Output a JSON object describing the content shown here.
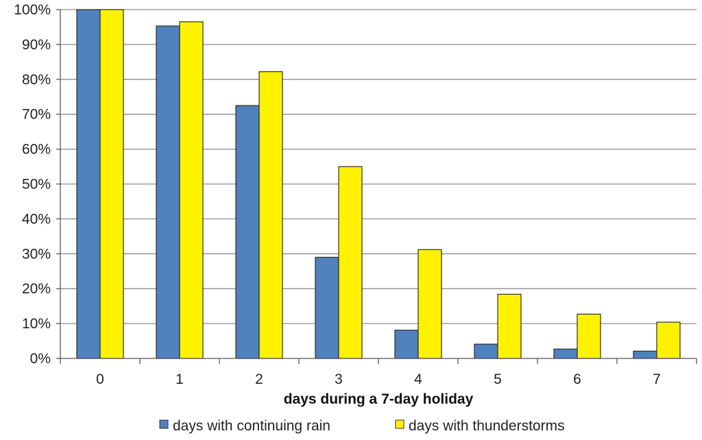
{
  "chart_data": {
    "type": "bar",
    "title": "",
    "xlabel": "days during a 7-day holiday",
    "ylabel": "",
    "categories": [
      "0",
      "1",
      "2",
      "3",
      "4",
      "5",
      "6",
      "7"
    ],
    "ylim": [
      0,
      100
    ],
    "yticks": [
      0,
      10,
      20,
      30,
      40,
      50,
      60,
      70,
      80,
      90,
      100
    ],
    "ytick_labels": [
      "0%",
      "10%",
      "20%",
      "30%",
      "40%",
      "50%",
      "60%",
      "70%",
      "80%",
      "90%",
      "100%"
    ],
    "grid": true,
    "legend_position": "bottom",
    "series": [
      {
        "name": "days with continuing rain",
        "color": "#4F81BD",
        "values": [
          100,
          95.3,
          72.5,
          29,
          8.1,
          4.1,
          2.7,
          2.1
        ]
      },
      {
        "name": "days with thunderstorms",
        "color": "#FFF200",
        "values": [
          100,
          96.5,
          82.2,
          55,
          31.2,
          18.4,
          12.7,
          10.4
        ]
      }
    ]
  }
}
